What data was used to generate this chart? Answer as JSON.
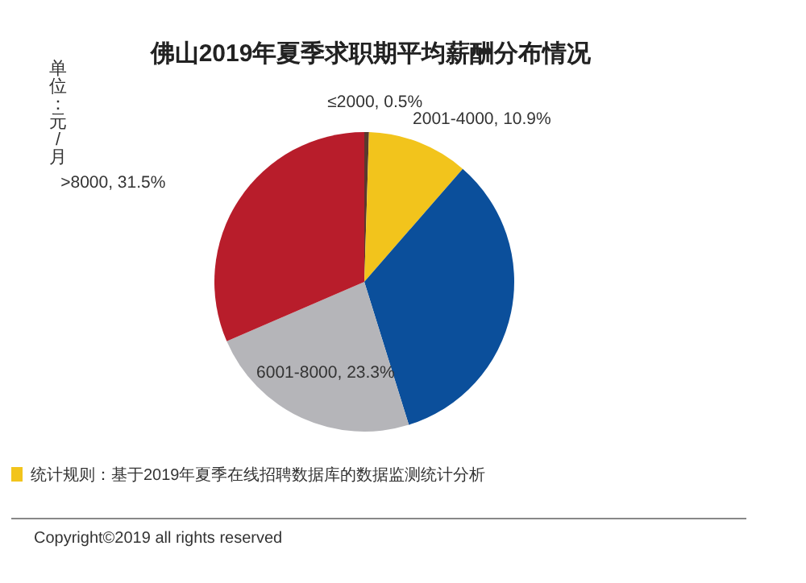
{
  "chart_data": {
    "type": "pie",
    "title": "佛山2019年夏季求职期平均薪酬分布情况",
    "categories": [
      "≤2000",
      "2001-4000",
      null,
      "6001-8000",
      ">8000"
    ],
    "values": [
      0.5,
      10.9,
      33.8,
      23.3,
      31.5
    ],
    "value_labels": [
      "0.5%",
      "10.9%",
      null,
      "23.3%",
      "31.5%"
    ],
    "colors": [
      "#5a3a2e",
      "#f2c41c",
      "#0b4f9b",
      "#b5b5b9",
      "#b81d2b"
    ],
    "annotations": [
      "单位：元/月",
      "统计规则：基于2019年夏季在线招聘数据库的数据监测统计分析",
      "Copyright©2019 all rights reserved"
    ]
  }
}
